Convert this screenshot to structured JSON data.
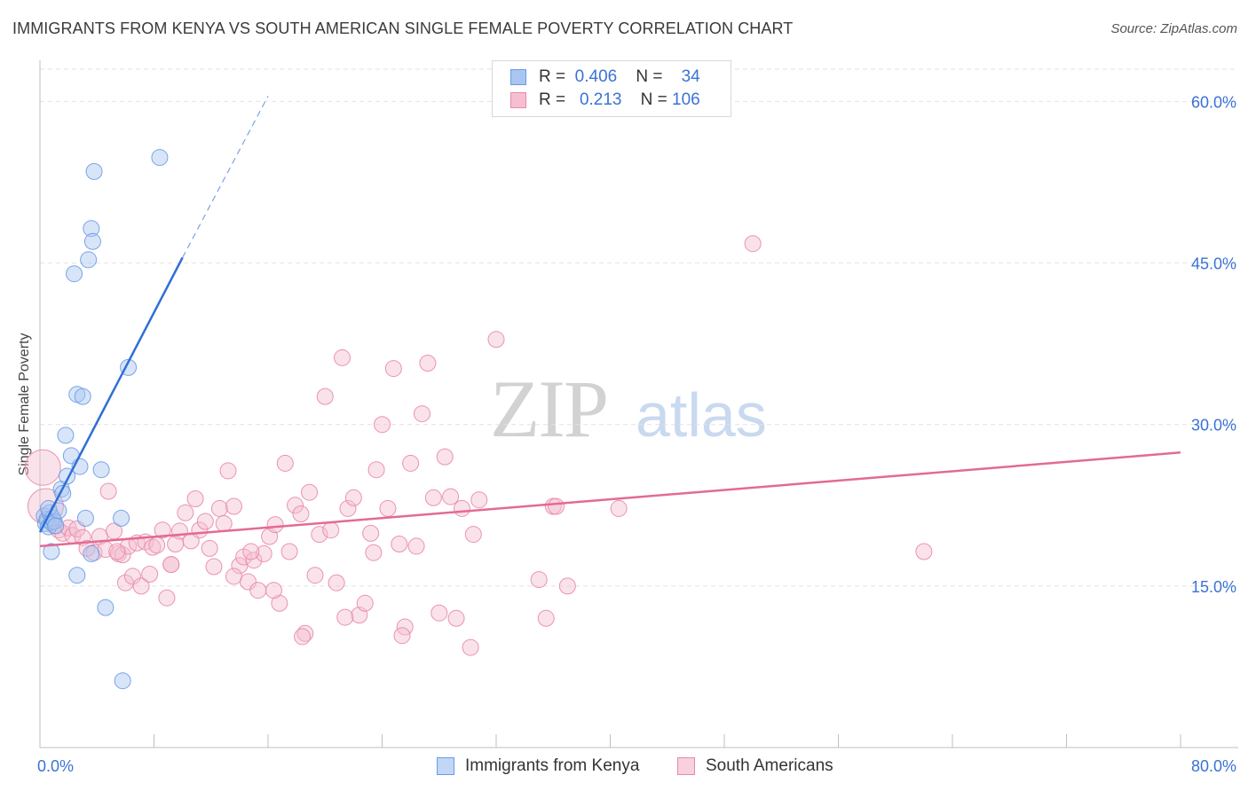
{
  "chart_data": {
    "type": "scatter",
    "title": "IMMIGRANTS FROM KENYA VS SOUTH AMERICAN SINGLE FEMALE POVERTY CORRELATION CHART",
    "source": "Source: ZipAtlas.com",
    "watermark": "ZIPatlas",
    "xlabel": "",
    "ylabel": "Single Female Poverty",
    "xlim": [
      0,
      80
    ],
    "ylim": [
      0,
      63
    ],
    "x_tick_labels": [
      "0.0%",
      "80.0%"
    ],
    "y_ticks": [
      15,
      30,
      45,
      60
    ],
    "y_tick_labels": [
      "15.0%",
      "30.0%",
      "45.0%",
      "60.0%"
    ],
    "grid": true,
    "legend": {
      "position": "top-center",
      "rows": [
        {
          "r_label": "R =",
          "r_value": "0.406",
          "n_label": "N =",
          "n_value": "34"
        },
        {
          "r_label": "R =",
          "r_value": "0.213",
          "n_label": "N =",
          "n_value": "106"
        }
      ]
    },
    "series": [
      {
        "name": "Immigrants from Kenya",
        "color": "#6a9be6",
        "fill": "#a9c6f0",
        "trend": {
          "x0": 0,
          "y0": 20,
          "x1": 10.0,
          "y1": 45.5,
          "dash_to": [
            16.0,
            60.5
          ]
        },
        "points": [
          [
            0.3,
            21.5
          ],
          [
            0.4,
            20.8
          ],
          [
            0.5,
            21.2
          ],
          [
            0.6,
            20.5
          ],
          [
            0.7,
            21.8
          ],
          [
            0.8,
            20.9
          ],
          [
            0.9,
            21.3
          ],
          [
            1.0,
            21.0
          ],
          [
            0.6,
            22.2
          ],
          [
            1.1,
            20.6
          ],
          [
            1.3,
            22.0
          ],
          [
            1.5,
            24.0
          ],
          [
            1.6,
            23.6
          ],
          [
            1.8,
            29.0
          ],
          [
            1.9,
            25.2
          ],
          [
            2.2,
            27.1
          ],
          [
            2.4,
            44.0
          ],
          [
            2.6,
            32.8
          ],
          [
            2.8,
            26.1
          ],
          [
            3.0,
            32.6
          ],
          [
            3.2,
            21.3
          ],
          [
            3.4,
            45.3
          ],
          [
            3.6,
            48.2
          ],
          [
            3.7,
            47.0
          ],
          [
            3.8,
            53.5
          ],
          [
            4.3,
            25.8
          ],
          [
            4.6,
            13.0
          ],
          [
            5.7,
            21.3
          ],
          [
            6.2,
            35.3
          ],
          [
            5.8,
            6.2
          ],
          [
            8.4,
            54.8
          ],
          [
            0.8,
            18.2
          ],
          [
            3.6,
            18.0
          ],
          [
            2.6,
            16.0
          ]
        ]
      },
      {
        "name": "South Americans",
        "color": "#e888a8",
        "fill": "#f5bfd1",
        "trend": {
          "x0": 0,
          "y0": 18.7,
          "x1": 80,
          "y1": 27.4
        },
        "points": [
          [
            0.2,
            26.0
          ],
          [
            0.4,
            22.4
          ],
          [
            0.6,
            21.2
          ],
          [
            1.0,
            20.6
          ],
          [
            1.3,
            20.2
          ],
          [
            1.6,
            19.9
          ],
          [
            2.0,
            20.4
          ],
          [
            2.3,
            19.7
          ],
          [
            2.6,
            20.3
          ],
          [
            3.0,
            19.5
          ],
          [
            3.3,
            18.5
          ],
          [
            3.8,
            18.1
          ],
          [
            4.2,
            19.6
          ],
          [
            4.6,
            18.4
          ],
          [
            4.8,
            23.8
          ],
          [
            5.2,
            20.1
          ],
          [
            5.5,
            18.0
          ],
          [
            5.8,
            17.9
          ],
          [
            6.0,
            15.3
          ],
          [
            6.2,
            18.7
          ],
          [
            6.5,
            15.9
          ],
          [
            6.8,
            19.0
          ],
          [
            7.1,
            15.0
          ],
          [
            7.4,
            19.1
          ],
          [
            7.7,
            16.1
          ],
          [
            7.9,
            18.6
          ],
          [
            8.2,
            18.8
          ],
          [
            8.6,
            20.2
          ],
          [
            8.9,
            13.9
          ],
          [
            9.2,
            17.0
          ],
          [
            9.5,
            18.9
          ],
          [
            9.8,
            20.1
          ],
          [
            10.2,
            21.8
          ],
          [
            10.6,
            19.2
          ],
          [
            10.9,
            23.1
          ],
          [
            11.2,
            20.2
          ],
          [
            11.6,
            21.0
          ],
          [
            11.9,
            18.5
          ],
          [
            12.2,
            16.8
          ],
          [
            12.6,
            22.2
          ],
          [
            12.9,
            20.8
          ],
          [
            13.2,
            25.7
          ],
          [
            13.6,
            22.4
          ],
          [
            14.0,
            16.9
          ],
          [
            14.3,
            17.7
          ],
          [
            14.6,
            15.4
          ],
          [
            15.0,
            17.4
          ],
          [
            15.3,
            14.6
          ],
          [
            15.7,
            18.0
          ],
          [
            16.1,
            19.6
          ],
          [
            16.5,
            20.7
          ],
          [
            16.8,
            13.4
          ],
          [
            17.2,
            26.4
          ],
          [
            17.5,
            18.2
          ],
          [
            17.9,
            22.5
          ],
          [
            18.3,
            21.7
          ],
          [
            18.6,
            10.6
          ],
          [
            18.9,
            23.7
          ],
          [
            19.3,
            16.0
          ],
          [
            19.6,
            19.8
          ],
          [
            20.0,
            32.6
          ],
          [
            20.4,
            20.2
          ],
          [
            20.8,
            15.3
          ],
          [
            21.2,
            36.2
          ],
          [
            21.6,
            22.2
          ],
          [
            22.0,
            23.2
          ],
          [
            22.4,
            12.3
          ],
          [
            22.8,
            13.4
          ],
          [
            23.2,
            19.9
          ],
          [
            23.6,
            25.8
          ],
          [
            24.0,
            30.0
          ],
          [
            24.4,
            22.2
          ],
          [
            24.8,
            35.2
          ],
          [
            25.2,
            18.9
          ],
          [
            25.6,
            11.2
          ],
          [
            26.0,
            26.4
          ],
          [
            26.4,
            18.7
          ],
          [
            26.8,
            31.0
          ],
          [
            27.2,
            35.7
          ],
          [
            27.6,
            23.2
          ],
          [
            28.0,
            12.5
          ],
          [
            28.4,
            27.0
          ],
          [
            28.8,
            23.3
          ],
          [
            29.2,
            12.0
          ],
          [
            29.6,
            22.2
          ],
          [
            30.2,
            9.3
          ],
          [
            30.8,
            23.0
          ],
          [
            32.0,
            37.9
          ],
          [
            35.0,
            15.6
          ],
          [
            35.5,
            12.0
          ],
          [
            36.0,
            22.4
          ],
          [
            37.0,
            15.0
          ],
          [
            50.0,
            46.8
          ],
          [
            62.0,
            18.2
          ],
          [
            18.4,
            10.3
          ],
          [
            16.4,
            14.6
          ],
          [
            13.6,
            15.9
          ],
          [
            9.2,
            17.0
          ],
          [
            5.4,
            18.2
          ],
          [
            25.4,
            10.4
          ],
          [
            30.4,
            19.8
          ],
          [
            40.6,
            22.2
          ],
          [
            36.2,
            22.4
          ],
          [
            21.4,
            12.1
          ],
          [
            23.4,
            18.1
          ],
          [
            14.8,
            18.2
          ]
        ]
      }
    ]
  }
}
